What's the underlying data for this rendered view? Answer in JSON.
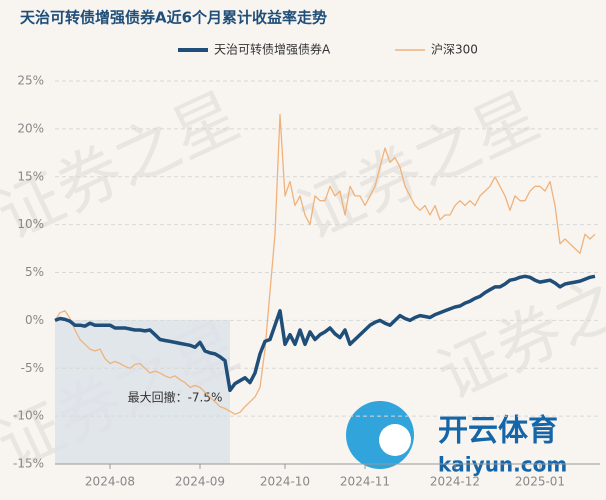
{
  "chart_data": {
    "type": "line",
    "title": "天治可转债增强债券A近6个月累计收益率走势",
    "annotation": "最大回撤：-7.5%",
    "watermark": "证券之星",
    "logo": {
      "name": "开云体育",
      "url": "kaiyun.com"
    },
    "legend": "top",
    "grid": true,
    "categories": [
      null,
      null,
      null,
      null,
      null,
      null,
      null,
      null,
      null,
      null,
      null,
      "2024-08",
      null,
      null,
      null,
      null,
      null,
      null,
      null,
      null,
      null,
      null,
      null,
      null,
      null,
      null,
      null,
      null,
      null,
      "2024-09",
      null,
      null,
      null,
      null,
      null,
      null,
      null,
      null,
      null,
      null,
      null,
      null,
      null,
      null,
      null,
      null,
      "2024-10",
      null,
      null,
      null,
      null,
      null,
      null,
      null,
      null,
      null,
      null,
      null,
      null,
      null,
      null,
      null,
      "2024-11",
      null,
      null,
      null,
      null,
      null,
      null,
      null,
      null,
      null,
      null,
      null,
      null,
      null,
      null,
      null,
      null,
      null,
      "2024-12",
      null,
      null,
      null,
      null,
      null,
      null,
      null,
      null,
      null,
      null,
      null,
      null,
      null,
      null,
      null,
      null,
      "2025-01",
      null,
      null,
      null,
      null,
      null,
      null,
      null,
      null,
      null,
      null,
      null
    ],
    "series": [
      {
        "name": "天治可转债增强债券A",
        "color": "#1f4e79",
        "values": [
          0,
          0.2,
          0.1,
          -0.1,
          -0.5,
          -0.5,
          -0.6,
          -0.3,
          -0.5,
          -0.5,
          -0.5,
          -0.5,
          -0.8,
          -0.8,
          -0.8,
          -0.9,
          -1.0,
          -1.0,
          -1.1,
          -1.0,
          -1.5,
          -2.0,
          -2.1,
          -2.2,
          -2.3,
          -2.4,
          -2.5,
          -2.6,
          -2.8,
          -2.3,
          -3.2,
          -3.4,
          -3.5,
          -3.8,
          -4.2,
          -7.3,
          -6.6,
          -6.3,
          -6.0,
          -6.5,
          -5.5,
          -3.5,
          -2.2,
          -2.0,
          -0.5,
          1.0,
          -2.5,
          -1.5,
          -2.5,
          -1.0,
          -2.5,
          -1.2,
          -2.0,
          -1.5,
          -1.2,
          -0.8,
          -1.4,
          -1.8,
          -1.0,
          -2.5,
          -2.0,
          -1.5,
          -1.0,
          -0.5,
          -0.2,
          0.0,
          -0.3,
          -0.5,
          0.0,
          0.5,
          0.2,
          0.0,
          0.3,
          0.5,
          0.4,
          0.3,
          0.6,
          0.8,
          1.0,
          1.2,
          1.4,
          1.5,
          1.8,
          2.0,
          2.3,
          2.5,
          2.9,
          3.2,
          3.5,
          3.5,
          3.8,
          4.2,
          4.3,
          4.5,
          4.6,
          4.5,
          4.2,
          4.0,
          4.1,
          4.2,
          3.9,
          3.5,
          3.8,
          3.9,
          4.0,
          4.1,
          4.3,
          4.5,
          4.6
        ]
      },
      {
        "name": "沪深300",
        "color": "#f0b27a",
        "values": [
          0,
          0.8,
          1.0,
          0.2,
          -1.0,
          -2.0,
          -2.5,
          -3.0,
          -3.2,
          -3.0,
          -4.0,
          -4.5,
          -4.3,
          -4.5,
          -4.8,
          -5.0,
          -4.6,
          -4.5,
          -5.0,
          -5.5,
          -5.3,
          -5.5,
          -5.8,
          -6.0,
          -5.8,
          -6.2,
          -6.5,
          -7.0,
          -6.8,
          -7.0,
          -7.5,
          -8.0,
          -8.5,
          -9.0,
          -9.2,
          -9.5,
          -9.8,
          -9.6,
          -9.0,
          -8.5,
          -8.0,
          -7.0,
          -3.0,
          3.0,
          9.0,
          21.5,
          13.0,
          14.5,
          12.0,
          13.0,
          11.0,
          10.0,
          13.0,
          12.5,
          12.5,
          14.0,
          13.0,
          13.5,
          11.0,
          14.0,
          13.0,
          13.0,
          12.0,
          13.0,
          14.0,
          16.0,
          18.0,
          16.5,
          17.0,
          16.0,
          14.0,
          13.0,
          12.0,
          11.5,
          12.0,
          11.0,
          12.0,
          10.5,
          11.0,
          11.0,
          12.0,
          12.5,
          12.0,
          12.5,
          12.0,
          13.0,
          13.5,
          14.0,
          15.0,
          14.0,
          13.0,
          11.5,
          13.0,
          12.5,
          12.5,
          13.5,
          14.0,
          14.0,
          13.5,
          14.5,
          12.0,
          8.0,
          8.5,
          8.0,
          7.5,
          7.0,
          9.0,
          8.5,
          9.0
        ]
      }
    ],
    "ylim": [
      -15,
      25
    ],
    "yticks": [
      {
        "value": -15,
        "label": "-15%"
      },
      {
        "value": -10,
        "label": "-10%"
      },
      {
        "value": -5,
        "label": "-5%"
      },
      {
        "value": 0,
        "label": "0%"
      },
      {
        "value": 5,
        "label": "5%"
      },
      {
        "value": 10,
        "label": "10%"
      },
      {
        "value": 15,
        "label": "15%"
      },
      {
        "value": 20,
        "label": "20%"
      },
      {
        "value": 25,
        "label": "25%"
      }
    ]
  }
}
